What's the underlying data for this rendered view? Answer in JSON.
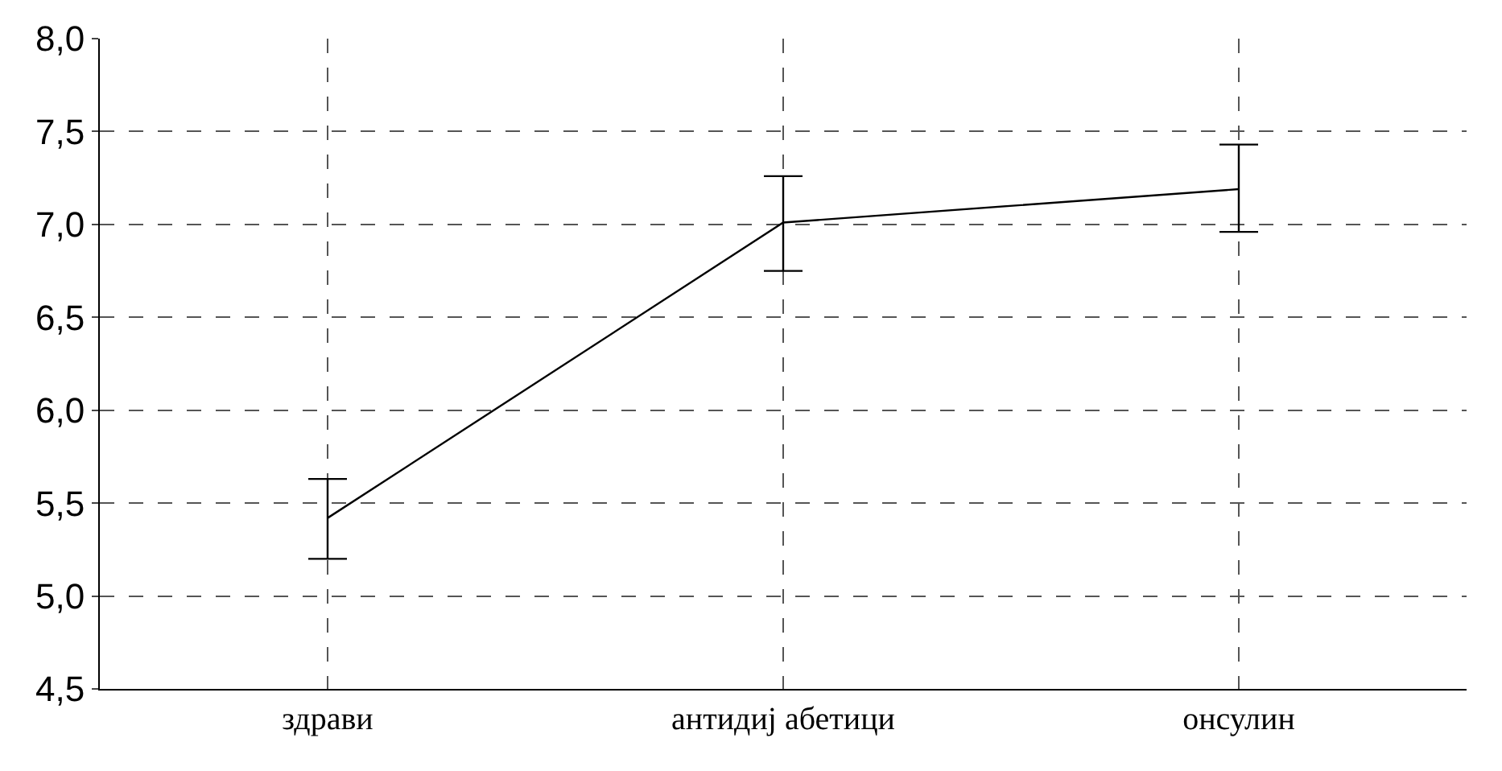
{
  "chart_data": {
    "type": "line",
    "categories": [
      "здрави",
      "антидиј абетици",
      "онсулин"
    ],
    "series": [
      {
        "color": "#000000",
        "values": [
          5.42,
          7.01,
          7.19
        ],
        "errors": [
          [
            5.2,
            5.63
          ],
          [
            6.75,
            7.26
          ],
          [
            6.96,
            7.43
          ]
        ]
      }
    ],
    "ylim": [
      4.5,
      8.0
    ],
    "yticks": [
      {
        "value": 4.5,
        "label": "4,5"
      },
      {
        "value": 5.0,
        "label": "5,0"
      },
      {
        "value": 5.5,
        "label": "5,5"
      },
      {
        "value": 6.0,
        "label": "6,0"
      },
      {
        "value": 6.5,
        "label": "6,5"
      },
      {
        "value": 7.0,
        "label": "7,0"
      },
      {
        "value": 7.5,
        "label": "7,5"
      },
      {
        "value": 8.0,
        "label": "8,0"
      }
    ],
    "grid": true,
    "marker": "none",
    "line_style": "solid"
  }
}
